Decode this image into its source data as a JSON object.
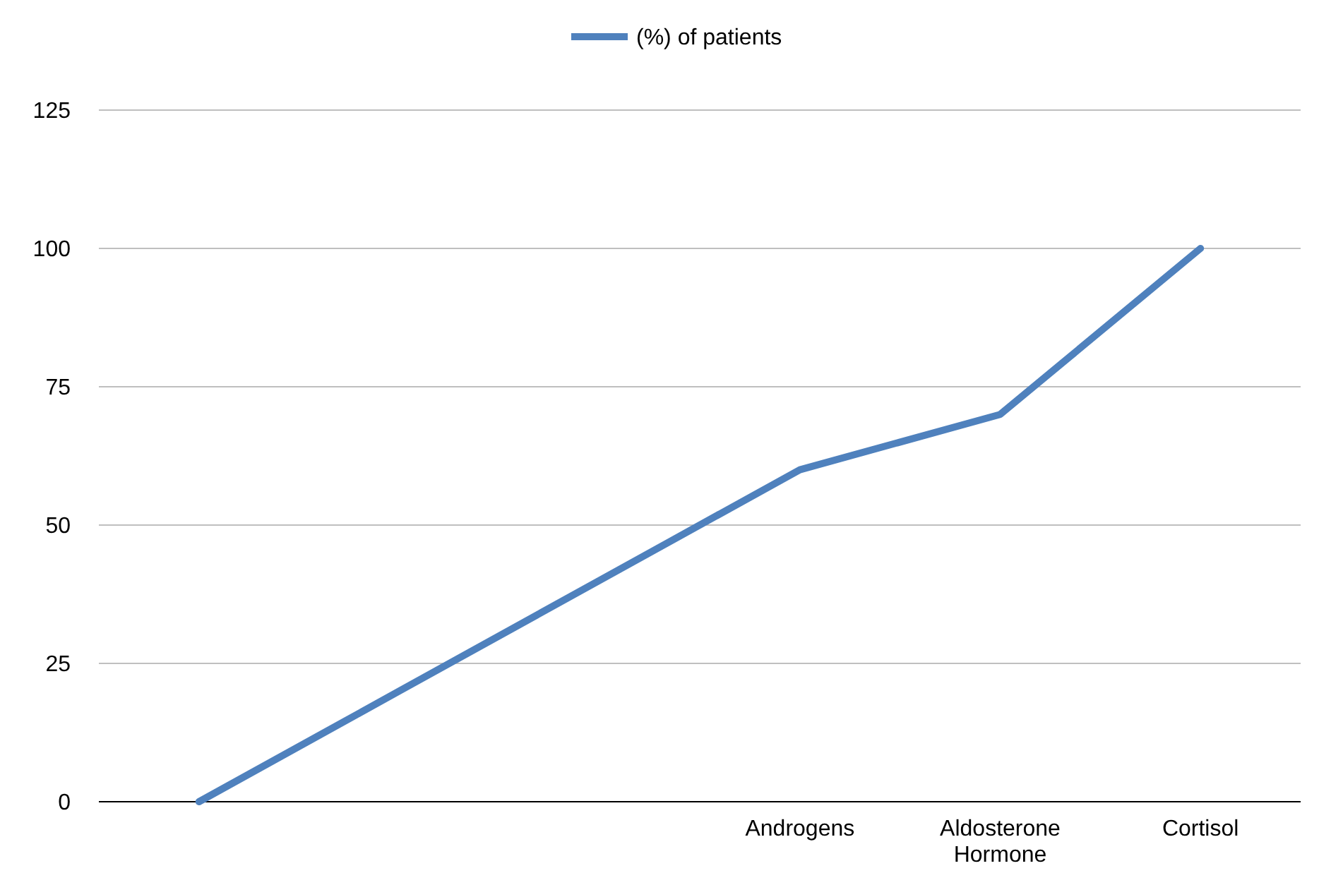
{
  "chart_data": {
    "type": "line",
    "categories": [
      null,
      null,
      null,
      "Androgens",
      "Aldosterone Hormone",
      "Cortisol"
    ],
    "series": [
      {
        "name": "(%) of patients",
        "color": "#4f81bd",
        "values": [
          0,
          20,
          40,
          60,
          70,
          100
        ]
      }
    ],
    "ylim": [
      0,
      125
    ],
    "yticks": [
      0,
      25,
      50,
      75,
      100,
      125
    ],
    "grid": "y",
    "legend": "top",
    "marker": "none",
    "line_style": "solid"
  }
}
